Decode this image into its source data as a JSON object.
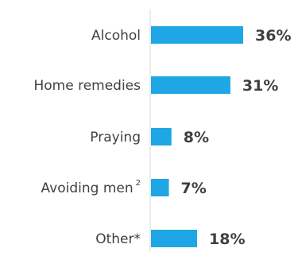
{
  "chart_data": {
    "type": "bar",
    "orientation": "horizontal",
    "title": "",
    "xlabel": "",
    "ylabel": "",
    "categories": [
      {
        "label": "Alcohol",
        "sup": ""
      },
      {
        "label": "Home remedies",
        "sup": ""
      },
      {
        "label": "Praying",
        "sup": ""
      },
      {
        "label": "Avoiding men",
        "sup": "2"
      },
      {
        "label": "Other*",
        "sup": ""
      }
    ],
    "values": [
      36,
      31,
      8,
      7,
      18
    ],
    "value_labels": [
      "36%",
      "31%",
      "8%",
      "7%",
      "18%"
    ],
    "xlim": [
      0,
      100
    ],
    "unit": "%",
    "grid": false,
    "legend": "none",
    "colors": {
      "bar": "#1ea7e4",
      "axis": "#d9d9d9",
      "text": "#404040"
    }
  }
}
